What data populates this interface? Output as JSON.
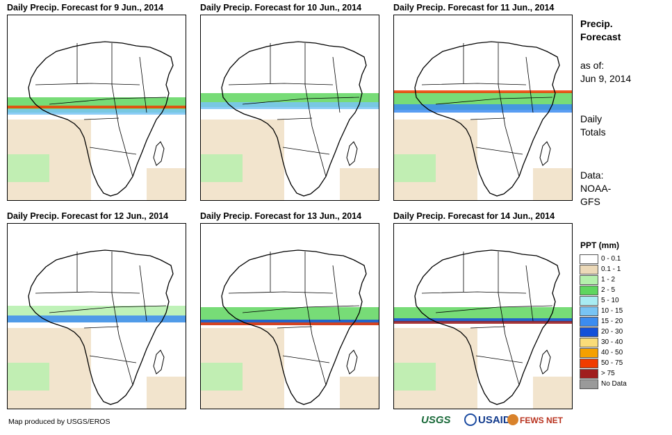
{
  "panels": [
    {
      "title": "Daily Precip. Forecast for 9 Jun., 2014"
    },
    {
      "title": "Daily Precip. Forecast for 10 Jun., 2014"
    },
    {
      "title": "Daily Precip. Forecast for 11 Jun., 2014"
    },
    {
      "title": "Daily Precip. Forecast for 12 Jun., 2014"
    },
    {
      "title": "Daily Precip. Forecast for 13 Jun., 2014"
    },
    {
      "title": "Daily Precip. Forecast for 14 Jun., 2014"
    }
  ],
  "sidebar": {
    "heading_line1": "Precip.",
    "heading_line2": "Forecast",
    "as_of_label": "as of:",
    "as_of_date": "Jun 9, 2014",
    "totals_line1": "Daily",
    "totals_line2": "Totals",
    "data_line1": "Data:",
    "data_line2": "NOAA-",
    "data_line3": "GFS"
  },
  "legend": {
    "title": "PPT (mm)",
    "items": [
      {
        "label": "0 - 0.1",
        "color": "#ffffff"
      },
      {
        "label": "0.1 - 1",
        "color": "#ecd9b8"
      },
      {
        "label": "1 - 2",
        "color": "#b4f0ac"
      },
      {
        "label": "2 - 5",
        "color": "#5fd65f"
      },
      {
        "label": "5 - 10",
        "color": "#a8ecf2"
      },
      {
        "label": "10 - 15",
        "color": "#78c4f4"
      },
      {
        "label": "15 - 20",
        "color": "#3c8cf0"
      },
      {
        "label": "20 - 30",
        "color": "#1450d8"
      },
      {
        "label": "30 - 40",
        "color": "#fadc78"
      },
      {
        "label": "40 - 50",
        "color": "#f5a000"
      },
      {
        "label": "50 - 75",
        "color": "#f03c00"
      },
      {
        "label": "> 75",
        "color": "#a01e1e"
      },
      {
        "label": "No Data",
        "color": "#9a9a9a"
      }
    ]
  },
  "footer": {
    "credit": "Map produced by USGS/EROS"
  },
  "logos": {
    "usgs": "USGS",
    "usaid": "USAID",
    "fews": "FEWS NET"
  }
}
